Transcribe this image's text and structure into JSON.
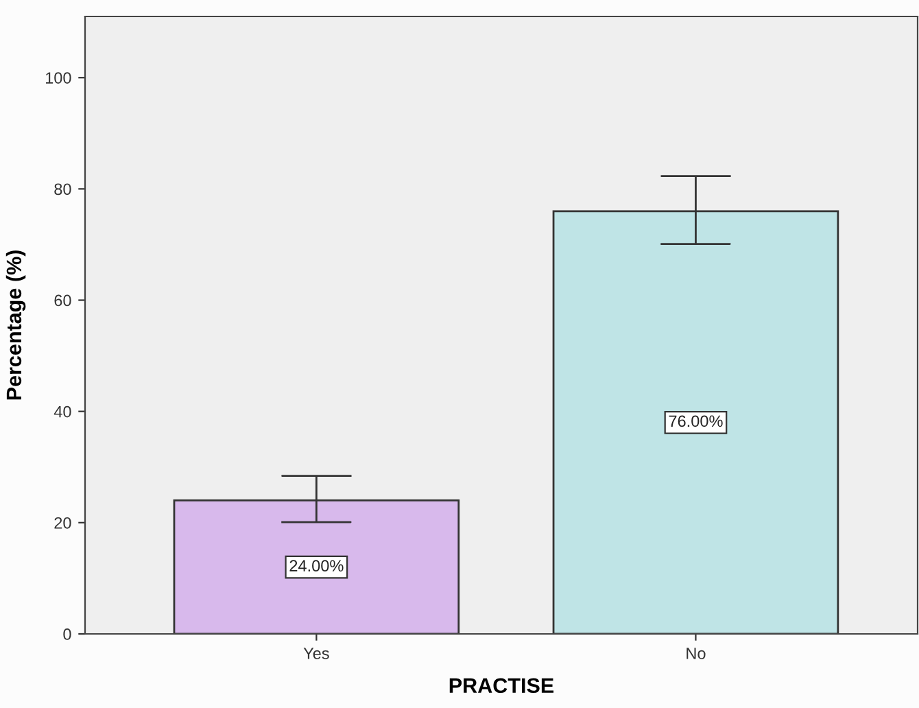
{
  "chart_data": {
    "type": "bar",
    "xlabel": "PRACTISE",
    "ylabel": "Percentage (%)",
    "categories": [
      "Yes",
      "No"
    ],
    "values": [
      24,
      76
    ],
    "colors": [
      "#d8b9ec",
      "#bfe4e6"
    ],
    "errors": [
      [
        20.1,
        28.4
      ],
      [
        70.1,
        82.3
      ]
    ],
    "value_labels": [
      "24.00%",
      "76.00%"
    ],
    "ylim": [
      0,
      111
    ],
    "yticks": [
      0,
      20,
      40,
      60,
      80,
      100
    ],
    "grid": false
  }
}
